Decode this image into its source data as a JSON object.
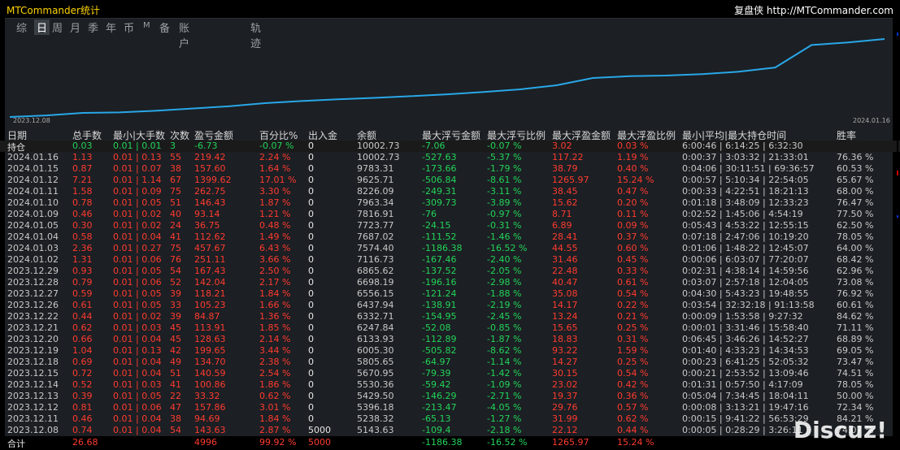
{
  "app": {
    "title": "MTCommander统计",
    "site": "复盘侠 http://MTCommander.com"
  },
  "tabs": [
    "综",
    "日",
    "周",
    "月",
    "季",
    "年",
    "币",
    "M",
    "备",
    "账户",
    "轨迹"
  ],
  "active_tab": 1,
  "chart": {
    "x_start": "2023.12.08",
    "x_end": "2024.01.16",
    "balances": [
      5143.63,
      5238.32,
      5396.18,
      5429.5,
      5530.36,
      5670.95,
      5805.65,
      6005.3,
      6133.93,
      6247.84,
      6332.71,
      6437.94,
      6556.15,
      6698.19,
      6865.62,
      7116.73,
      7574.4,
      7687.02,
      7723.77,
      7816.91,
      7963.34,
      8226.09,
      9625.71,
      9783.31,
      10002.73
    ],
    "line_color": "#29a7e8"
  },
  "headers": [
    "日期",
    "总手数",
    "最小|大手数",
    "次数",
    "盈亏金额",
    "百分比%",
    "出入金",
    "余额",
    "最大浮亏金额",
    "最大浮亏比例",
    "最大浮盈金额",
    "最大浮盈比例",
    "最小|平均|最大持仓时间",
    "胜率"
  ],
  "position_row": {
    "date": "持仓",
    "lots": "0.03",
    "minmax": "0.01 | 0.01",
    "count": "3",
    "pnl": "-6.73",
    "pct": "-0.07 %",
    "io": "0",
    "balance": "10002.73",
    "maxloss": "-7.06",
    "maxlosspct": "-0.07 %",
    "maxgain": "3.02",
    "maxgainpct": "0.03 %",
    "hold": "6:00:46 | 6:14:25 | 6:32:30",
    "win": ""
  },
  "rows": [
    {
      "date": "2024.01.16",
      "lots": "1.13",
      "minmax": "0.01 | 0.13",
      "count": "55",
      "pnl": "219.42",
      "pct": "2.24 %",
      "io": "0",
      "balance": "10002.73",
      "maxloss": "-527.63",
      "maxlosspct": "-5.37 %",
      "maxgain": "117.22",
      "maxgainpct": "1.19 %",
      "hold": "0:00:37 | 3:03:32 | 21:33:01",
      "win": "76.36 %"
    },
    {
      "date": "2024.01.15",
      "lots": "0.87",
      "minmax": "0.01 | 0.07",
      "count": "38",
      "pnl": "157.60",
      "pct": "1.64 %",
      "io": "0",
      "balance": "9783.31",
      "maxloss": "-173.66",
      "maxlosspct": "-1.79 %",
      "maxgain": "38.79",
      "maxgainpct": "0.40 %",
      "hold": "0:04:06 | 30:11:51 | 69:36:57",
      "win": "60.53 %"
    },
    {
      "date": "2024.01.12",
      "lots": "7.21",
      "minmax": "0.01 | 1.14",
      "count": "67",
      "pnl": "1399.62",
      "pct": "17.01 %",
      "io": "0",
      "balance": "9625.71",
      "maxloss": "-506.84",
      "maxlosspct": "-8.61 %",
      "maxgain": "1265.97",
      "maxgainpct": "15.24 %",
      "hold": "0:00:57 | 5:10:34 | 22:54:05",
      "win": "65.67 %"
    },
    {
      "date": "2024.01.11",
      "lots": "1.58",
      "minmax": "0.01 | 0.09",
      "count": "75",
      "pnl": "262.75",
      "pct": "3.30 %",
      "io": "0",
      "balance": "8226.09",
      "maxloss": "-249.31",
      "maxlosspct": "-3.11 %",
      "maxgain": "38.45",
      "maxgainpct": "0.47 %",
      "hold": "0:00:33 | 4:22:51 | 18:21:13",
      "win": "68.00 %"
    },
    {
      "date": "2024.01.10",
      "lots": "0.78",
      "minmax": "0.01 | 0.05",
      "count": "51",
      "pnl": "146.43",
      "pct": "1.87 %",
      "io": "0",
      "balance": "7963.34",
      "maxloss": "-309.73",
      "maxlosspct": "-3.89 %",
      "maxgain": "15.62",
      "maxgainpct": "0.20 %",
      "hold": "0:01:18 | 3:48:09 | 12:33:23",
      "win": "76.47 %"
    },
    {
      "date": "2024.01.09",
      "lots": "0.46",
      "minmax": "0.01 | 0.02",
      "count": "40",
      "pnl": "93.14",
      "pct": "1.21 %",
      "io": "0",
      "balance": "7816.91",
      "maxloss": "-76",
      "maxlosspct": "-0.97 %",
      "maxgain": "8.71",
      "maxgainpct": "0.11 %",
      "hold": "0:02:52 | 1:45:06 | 4:54:19",
      "win": "77.50 %"
    },
    {
      "date": "2024.01.05",
      "lots": "0.30",
      "minmax": "0.01 | 0.02",
      "count": "24",
      "pnl": "36.75",
      "pct": "0.48 %",
      "io": "0",
      "balance": "7723.77",
      "maxloss": "-24.15",
      "maxlosspct": "-0.31 %",
      "maxgain": "6.89",
      "maxgainpct": "0.09 %",
      "hold": "0:05:43 | 4:53:22 | 12:55:15",
      "win": "62.50 %"
    },
    {
      "date": "2024.01.04",
      "lots": "0.58",
      "minmax": "0.01 | 0.04",
      "count": "41",
      "pnl": "112.62",
      "pct": "1.49 %",
      "io": "0",
      "balance": "7687.02",
      "maxloss": "-111.52",
      "maxlosspct": "-1.46 %",
      "maxgain": "28.41",
      "maxgainpct": "0.37 %",
      "hold": "0:07:18 | 2:47:06 | 10:19:20",
      "win": "78.05 %"
    },
    {
      "date": "2024.01.03",
      "lots": "2.36",
      "minmax": "0.01 | 0.27",
      "count": "75",
      "pnl": "457.67",
      "pct": "6.43 %",
      "io": "0",
      "balance": "7574.40",
      "maxloss": "-1186.38",
      "maxlosspct": "-16.52 %",
      "maxgain": "44.55",
      "maxgainpct": "0.60 %",
      "hold": "0:01:06 | 1:48:22 | 12:45:07",
      "win": "64.00 %"
    },
    {
      "date": "2024.01.02",
      "lots": "1.31",
      "minmax": "0.01 | 0.06",
      "count": "76",
      "pnl": "251.11",
      "pct": "3.66 %",
      "io": "0",
      "balance": "7116.73",
      "maxloss": "-167.46",
      "maxlosspct": "-2.40 %",
      "maxgain": "31.46",
      "maxgainpct": "0.45 %",
      "hold": "0:00:06 | 6:03:07 | 77:20:07",
      "win": "68.42 %"
    },
    {
      "date": "2023.12.29",
      "lots": "0.93",
      "minmax": "0.01 | 0.05",
      "count": "54",
      "pnl": "167.43",
      "pct": "2.50 %",
      "io": "0",
      "balance": "6865.62",
      "maxloss": "-137.52",
      "maxlosspct": "-2.05 %",
      "maxgain": "22.48",
      "maxgainpct": "0.33 %",
      "hold": "0:02:31 | 4:38:14 | 14:59:56",
      "win": "62.96 %"
    },
    {
      "date": "2023.12.28",
      "lots": "0.79",
      "minmax": "0.01 | 0.06",
      "count": "52",
      "pnl": "142.04",
      "pct": "2.17 %",
      "io": "0",
      "balance": "6698.19",
      "maxloss": "-196.16",
      "maxlosspct": "-2.98 %",
      "maxgain": "40.47",
      "maxgainpct": "0.61 %",
      "hold": "0:03:07 | 2:57:18 | 12:04:05",
      "win": "73.08 %"
    },
    {
      "date": "2023.12.27",
      "lots": "0.59",
      "minmax": "0.01 | 0.05",
      "count": "39",
      "pnl": "118.21",
      "pct": "1.84 %",
      "io": "0",
      "balance": "6556.15",
      "maxloss": "-121.24",
      "maxlosspct": "-1.88 %",
      "maxgain": "35.08",
      "maxgainpct": "0.54 %",
      "hold": "0:04:30 | 5:43:23 | 19:48:55",
      "win": "76.92 %"
    },
    {
      "date": "2023.12.26",
      "lots": "0.61",
      "minmax": "0.01 | 0.05",
      "count": "33",
      "pnl": "105.23",
      "pct": "1.66 %",
      "io": "0",
      "balance": "6437.94",
      "maxloss": "-138.91",
      "maxlosspct": "-2.19 %",
      "maxgain": "14.17",
      "maxgainpct": "0.22 %",
      "hold": "0:03:54 | 32:32:18 | 91:13:58",
      "win": "60.61 %"
    },
    {
      "date": "2023.12.22",
      "lots": "0.44",
      "minmax": "0.01 | 0.02",
      "count": "39",
      "pnl": "84.87",
      "pct": "1.36 %",
      "io": "0",
      "balance": "6332.71",
      "maxloss": "-154.95",
      "maxlosspct": "-2.45 %",
      "maxgain": "13.24",
      "maxgainpct": "0.21 %",
      "hold": "0:00:09 | 1:53:58 | 9:27:32",
      "win": "84.62 %"
    },
    {
      "date": "2023.12.21",
      "lots": "0.62",
      "minmax": "0.01 | 0.03",
      "count": "45",
      "pnl": "113.91",
      "pct": "1.85 %",
      "io": "0",
      "balance": "6247.84",
      "maxloss": "-52.08",
      "maxlosspct": "-0.85 %",
      "maxgain": "15.65",
      "maxgainpct": "0.25 %",
      "hold": "0:00:01 | 3:31:46 | 15:58:40",
      "win": "71.11 %"
    },
    {
      "date": "2023.12.20",
      "lots": "0.66",
      "minmax": "0.01 | 0.04",
      "count": "45",
      "pnl": "128.63",
      "pct": "2.14 %",
      "io": "0",
      "balance": "6133.93",
      "maxloss": "-112.89",
      "maxlosspct": "-1.87 %",
      "maxgain": "18.83",
      "maxgainpct": "0.31 %",
      "hold": "0:06:45 | 3:46:26 | 14:52:27",
      "win": "68.89 %"
    },
    {
      "date": "2023.12.19",
      "lots": "1.04",
      "minmax": "0.01 | 0.13",
      "count": "42",
      "pnl": "199.65",
      "pct": "3.44 %",
      "io": "0",
      "balance": "6005.30",
      "maxloss": "-505.82",
      "maxlosspct": "-8.62 %",
      "maxgain": "93.22",
      "maxgainpct": "1.59 %",
      "hold": "0:01:40 | 4:33:23 | 14:34:53",
      "win": "69.05 %"
    },
    {
      "date": "2023.12.18",
      "lots": "0.69",
      "minmax": "0.01 | 0.04",
      "count": "49",
      "pnl": "134.70",
      "pct": "2.38 %",
      "io": "0",
      "balance": "5805.65",
      "maxloss": "-64.97",
      "maxlosspct": "-1.14 %",
      "maxgain": "14.27",
      "maxgainpct": "0.25 %",
      "hold": "0:00:23 | 6:41:25 | 52:05:32",
      "win": "73.47 %"
    },
    {
      "date": "2023.12.15",
      "lots": "0.72",
      "minmax": "0.01 | 0.04",
      "count": "51",
      "pnl": "140.59",
      "pct": "2.54 %",
      "io": "0",
      "balance": "5670.95",
      "maxloss": "-79.39",
      "maxlosspct": "-1.42 %",
      "maxgain": "30.15",
      "maxgainpct": "0.54 %",
      "hold": "0:00:21 | 2:53:52 | 13:09:46",
      "win": "74.51 %"
    },
    {
      "date": "2023.12.14",
      "lots": "0.52",
      "minmax": "0.01 | 0.03",
      "count": "41",
      "pnl": "100.86",
      "pct": "1.86 %",
      "io": "0",
      "balance": "5530.36",
      "maxloss": "-59.42",
      "maxlosspct": "-1.09 %",
      "maxgain": "23.02",
      "maxgainpct": "0.42 %",
      "hold": "0:01:31 | 0:57:50 | 4:17:09",
      "win": "78.05 %"
    },
    {
      "date": "2023.12.13",
      "lots": "0.39",
      "minmax": "0.01 | 0.05",
      "count": "22",
      "pnl": "33.32",
      "pct": "0.62 %",
      "io": "0",
      "balance": "5429.50",
      "maxloss": "-146.29",
      "maxlosspct": "-2.71 %",
      "maxgain": "19.37",
      "maxgainpct": "0.36 %",
      "hold": "0:05:04 | 7:34:45 | 18:04:11",
      "win": "50.00 %"
    },
    {
      "date": "2023.12.12",
      "lots": "0.81",
      "minmax": "0.01 | 0.06",
      "count": "47",
      "pnl": "157.86",
      "pct": "3.01 %",
      "io": "0",
      "balance": "5396.18",
      "maxloss": "-213.47",
      "maxlosspct": "-4.05 %",
      "maxgain": "29.76",
      "maxgainpct": "0.57 %",
      "hold": "0:00:08 | 3:13:21 | 19:47:16",
      "win": "72.34 %"
    },
    {
      "date": "2023.12.11",
      "lots": "0.46",
      "minmax": "0.01 | 0.04",
      "count": "38",
      "pnl": "94.69",
      "pct": "1.84 %",
      "io": "0",
      "balance": "5238.32",
      "maxloss": "-65.13",
      "maxlosspct": "-1.27 %",
      "maxgain": "31.99",
      "maxgainpct": "0.62 %",
      "hold": "0:00:15 | 9:41:22 | 56:53:29",
      "win": "84.21 %"
    },
    {
      "date": "2023.12.08",
      "lots": "0.74",
      "minmax": "0.01 | 0.04",
      "count": "54",
      "pnl": "143.63",
      "pct": "2.87 %",
      "io": "5000",
      "balance": "5143.63",
      "maxloss": "-109.4",
      "maxlosspct": "-2.18 %",
      "maxgain": "22.12",
      "maxgainpct": "0.44 %",
      "hold": "0:00:05 | 0:28:29 | 3:26:11",
      "win": "74.07 %"
    }
  ],
  "total": {
    "date": "合计",
    "lots": "26.68",
    "pnl": "4996",
    "pct": "99.92 %",
    "io": "5000",
    "maxloss": "-1186.38",
    "maxlosspct": "-16.52 %",
    "maxgain": "1265.97",
    "maxgainpct": "15.24 %"
  },
  "watermark": "Discuz!"
}
